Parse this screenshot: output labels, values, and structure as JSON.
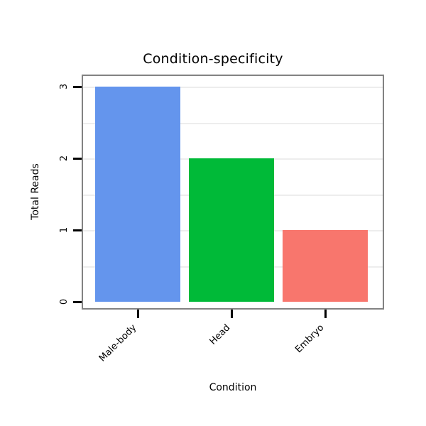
{
  "chart_data": {
    "type": "bar",
    "title": "Condition-specificity",
    "xlabel": "Condition",
    "ylabel": "Total Reads",
    "categories": [
      "Male-body",
      "Head",
      "Embryo"
    ],
    "values": [
      3,
      2,
      1
    ],
    "bar_colors": [
      "#6495ED",
      "#00BA38",
      "#F8766D"
    ],
    "yticks": [
      0,
      1,
      2,
      3
    ],
    "ylim": [
      0,
      3.15
    ],
    "gridlines": [
      0.5,
      1,
      1.5,
      2,
      2.5,
      3
    ],
    "grid_color": "#ededed",
    "grid_on": true,
    "legend": "none",
    "box_color": "#828282",
    "axis_color": "#000000",
    "background": "#ffffff"
  }
}
